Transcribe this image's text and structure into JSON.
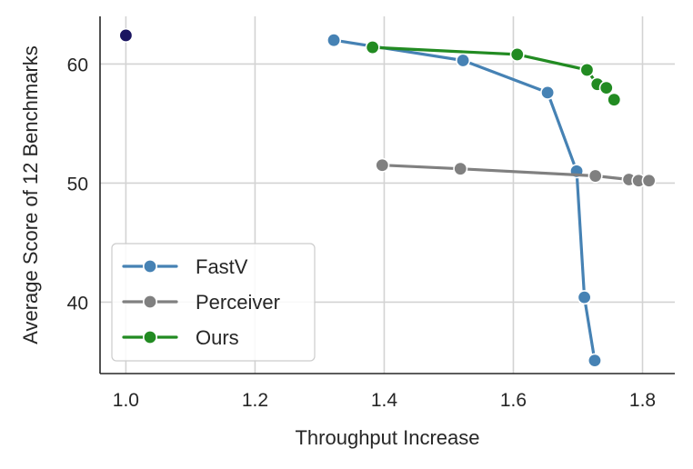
{
  "chart_data": {
    "type": "line",
    "title": "",
    "xlabel": "Throughput Increase",
    "ylabel": "Average Score of 12 Benchmarks",
    "xlim": [
      0.96,
      1.85
    ],
    "ylim": [
      34.0,
      64.0
    ],
    "xticks": [
      1.0,
      1.2,
      1.4,
      1.6,
      1.8
    ],
    "xtick_labels": [
      "1.0",
      "1.2",
      "1.4",
      "1.6",
      "1.8"
    ],
    "yticks": [
      40,
      50,
      60
    ],
    "ytick_labels": [
      "40",
      "50",
      "60"
    ],
    "grid": true,
    "legend_position": "bottom-left",
    "baseline": {
      "x": 1.0,
      "y": 62.4,
      "color": "#1a1560"
    },
    "series": [
      {
        "name": "FastV",
        "color": "#4682b4",
        "x": [
          1.322,
          1.522,
          1.653,
          1.698,
          1.71,
          1.726
        ],
        "y": [
          62.0,
          60.3,
          57.6,
          51.0,
          40.4,
          35.1
        ]
      },
      {
        "name": "Perceiver",
        "color": "#808080",
        "x": [
          1.397,
          1.518,
          1.727,
          1.779,
          1.794,
          1.81
        ],
        "y": [
          51.5,
          51.2,
          50.6,
          50.3,
          50.2,
          50.2
        ]
      },
      {
        "name": "Ours",
        "color": "#228b22",
        "x": [
          1.382,
          1.606,
          1.714,
          1.73,
          1.744,
          1.756
        ],
        "y": [
          61.4,
          60.8,
          59.5,
          58.3,
          58.0,
          57.0
        ]
      }
    ]
  }
}
